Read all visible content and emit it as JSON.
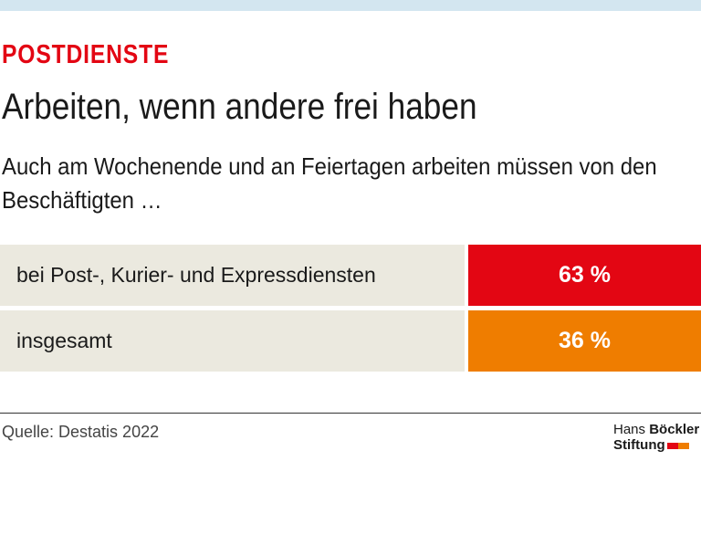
{
  "chart_data": {
    "type": "table",
    "kicker": "POSTDIENSTE",
    "title": "Arbeiten, wenn andere frei haben",
    "subtitle": "Auch am Wochenende und an Feiertagen arbeiten müssen von den Beschäftigten …",
    "categories": [
      "bei Post-, Kurier- und Expressdiensten",
      "insgesamt"
    ],
    "values": [
      63,
      36
    ],
    "value_labels": [
      "63 %",
      "36 %"
    ],
    "colors": [
      "#e30613",
      "#ef7d00"
    ],
    "source": "Quelle: Destatis 2022",
    "logo": [
      "Hans",
      "Böckler",
      "Stiftung"
    ]
  }
}
